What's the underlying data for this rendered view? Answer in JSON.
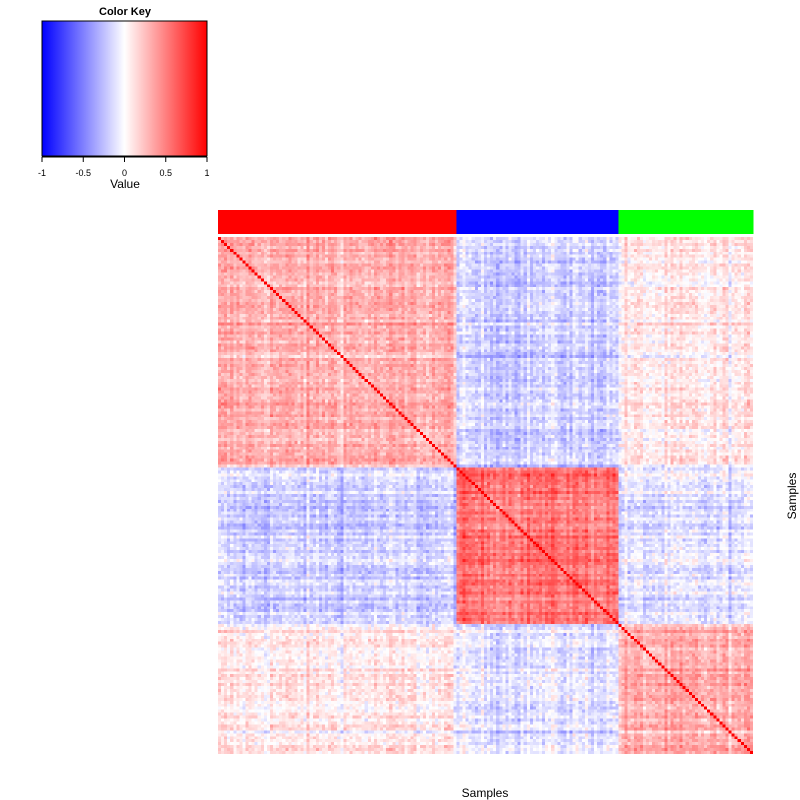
{
  "chart_data": {
    "type": "heatmap",
    "title": "",
    "xlabel": "Samples",
    "ylabel": "Samples",
    "n_samples": 175,
    "groups": [
      {
        "color": "#ff0000",
        "count": 78
      },
      {
        "color": "#0000ff",
        "count": 53
      },
      {
        "color": "#00ff00",
        "count": 44
      }
    ],
    "block_means": [
      [
        0.3,
        -0.18,
        0.06
      ],
      [
        -0.18,
        0.55,
        -0.12
      ],
      [
        0.06,
        -0.12,
        0.28
      ]
    ],
    "diagonal_value": 1,
    "color_key": {
      "title": "Color Key",
      "label": "Value",
      "range": [
        -1,
        1
      ],
      "ticks": [
        "-1",
        "-0.5",
        "0",
        "0.5",
        "1"
      ],
      "colors": [
        "#0000ff",
        "#ffffff",
        "#ff0000"
      ]
    }
  }
}
